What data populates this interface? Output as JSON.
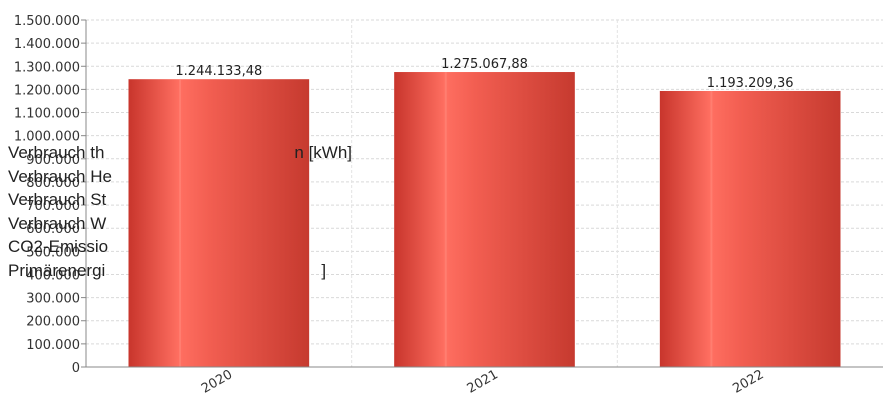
{
  "chart_data": {
    "type": "bar",
    "categories": [
      "2020",
      "2021",
      "2022"
    ],
    "values": [
      1244133.48,
      1275067.88,
      1193209.36
    ],
    "data_labels": [
      "1.244.133,48",
      "1.275.067,88",
      "1.193.209,36"
    ],
    "ylim": [
      0,
      1500000
    ],
    "yticks": [
      {
        "value": 0,
        "label": "0"
      },
      {
        "value": 100000,
        "label": "100.000"
      },
      {
        "value": 200000,
        "label": "200.000"
      },
      {
        "value": 300000,
        "label": "300.000"
      },
      {
        "value": 400000,
        "label": "400.000"
      },
      {
        "value": 500000,
        "label": "500.000"
      },
      {
        "value": 600000,
        "label": "600.000"
      },
      {
        "value": 700000,
        "label": "700.000"
      },
      {
        "value": 800000,
        "label": "800.000"
      },
      {
        "value": 900000,
        "label": "900.000"
      },
      {
        "value": 1000000,
        "label": "1.000.000"
      },
      {
        "value": 1100000,
        "label": "1.100.000"
      },
      {
        "value": 1200000,
        "label": "1.200.000"
      },
      {
        "value": 1300000,
        "label": "1.300.000"
      },
      {
        "value": 1400000,
        "label": "1.400.000"
      },
      {
        "value": 1500000,
        "label": "1.500.000"
      }
    ],
    "grid": true,
    "bar_color": "#e0463a",
    "legend_items": [
      "Verbrauch th",
      "Verbrauch He",
      "Verbrauch St",
      "Verbrauch W",
      "CO2-Emissio",
      "Primärenergi"
    ],
    "legend_fragments": [
      "n [kWh]",
      "]"
    ]
  }
}
